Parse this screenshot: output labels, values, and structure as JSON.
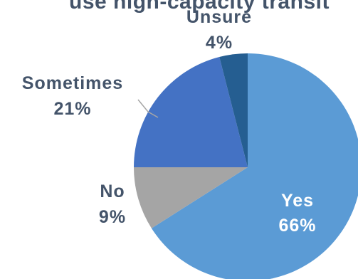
{
  "chart_data": {
    "type": "pie",
    "title": "use high-capacity transit",
    "slices": [
      {
        "label": "Yes",
        "value": 66,
        "display": "66%",
        "color": "#5b9bd5"
      },
      {
        "label": "No",
        "value": 9,
        "display": "9%",
        "color": "#a5a5a5"
      },
      {
        "label": "Sometimes",
        "value": 21,
        "display": "21%",
        "color": "#4472c4"
      },
      {
        "label": "Unsure",
        "value": 4,
        "display": "4%",
        "color": "#255e91"
      }
    ],
    "start_angle_deg": 0,
    "direction": "clockwise",
    "label_colors": {
      "inside": "#ffffff",
      "outside": "#44546a",
      "leader": "#a6a6a6"
    }
  }
}
